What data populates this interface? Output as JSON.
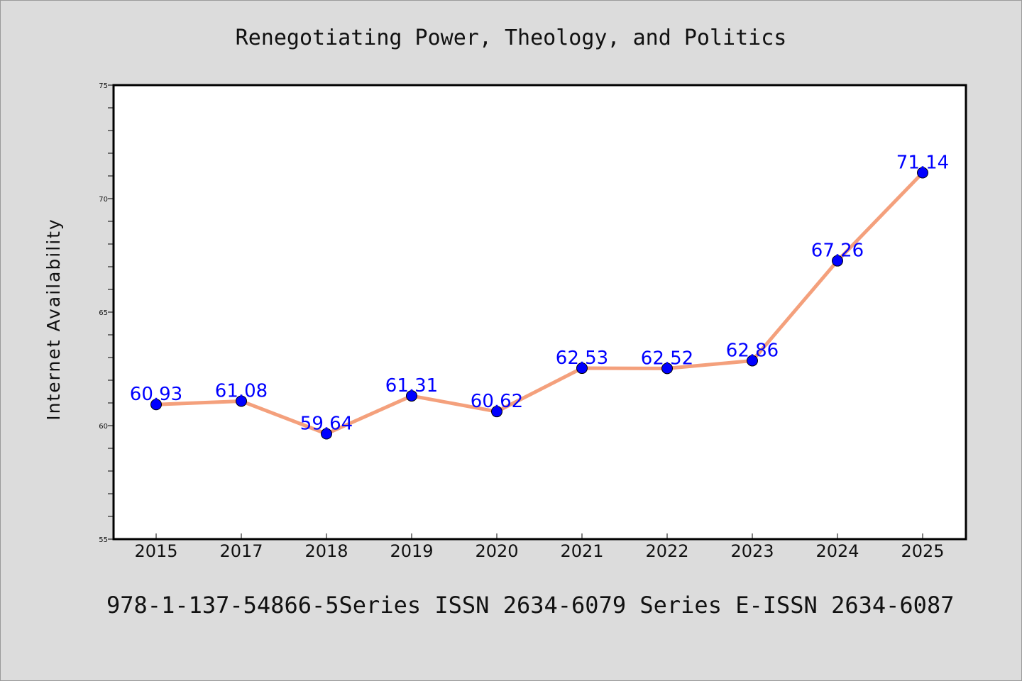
{
  "chart_data": {
    "type": "line",
    "title": "Renegotiating Power, Theology, and Politics",
    "xlabel": "",
    "ylabel": "Internet Availability",
    "categories": [
      "2015",
      "2017",
      "2018",
      "2019",
      "2020",
      "2021",
      "2022",
      "2023",
      "2024",
      "2025"
    ],
    "series": [
      {
        "values": [
          60.93,
          61.08,
          59.64,
          61.31,
          60.62,
          62.53,
          62.52,
          62.86,
          67.26,
          71.14
        ],
        "labels": [
          "60.93",
          "61.08",
          "59.64",
          "61.31",
          "60.62",
          "62.53",
          "62.52",
          "62.86",
          "67.26",
          "71.14"
        ],
        "line_color": "#f4a07c",
        "marker_color": "#0000ff",
        "label_color": "#0000ff"
      }
    ],
    "ylim": [
      55,
      75
    ],
    "yticks": [
      "55",
      "60",
      "65",
      "70",
      "75"
    ],
    "grid": false,
    "legend": "none"
  },
  "footer": {
    "text": "978-1-137-54866-5Series ISSN 2634-6079 Series E-ISSN 2634-6087"
  },
  "colors": {
    "background": "#dcdcdc",
    "plot_background": "#ffffff"
  }
}
